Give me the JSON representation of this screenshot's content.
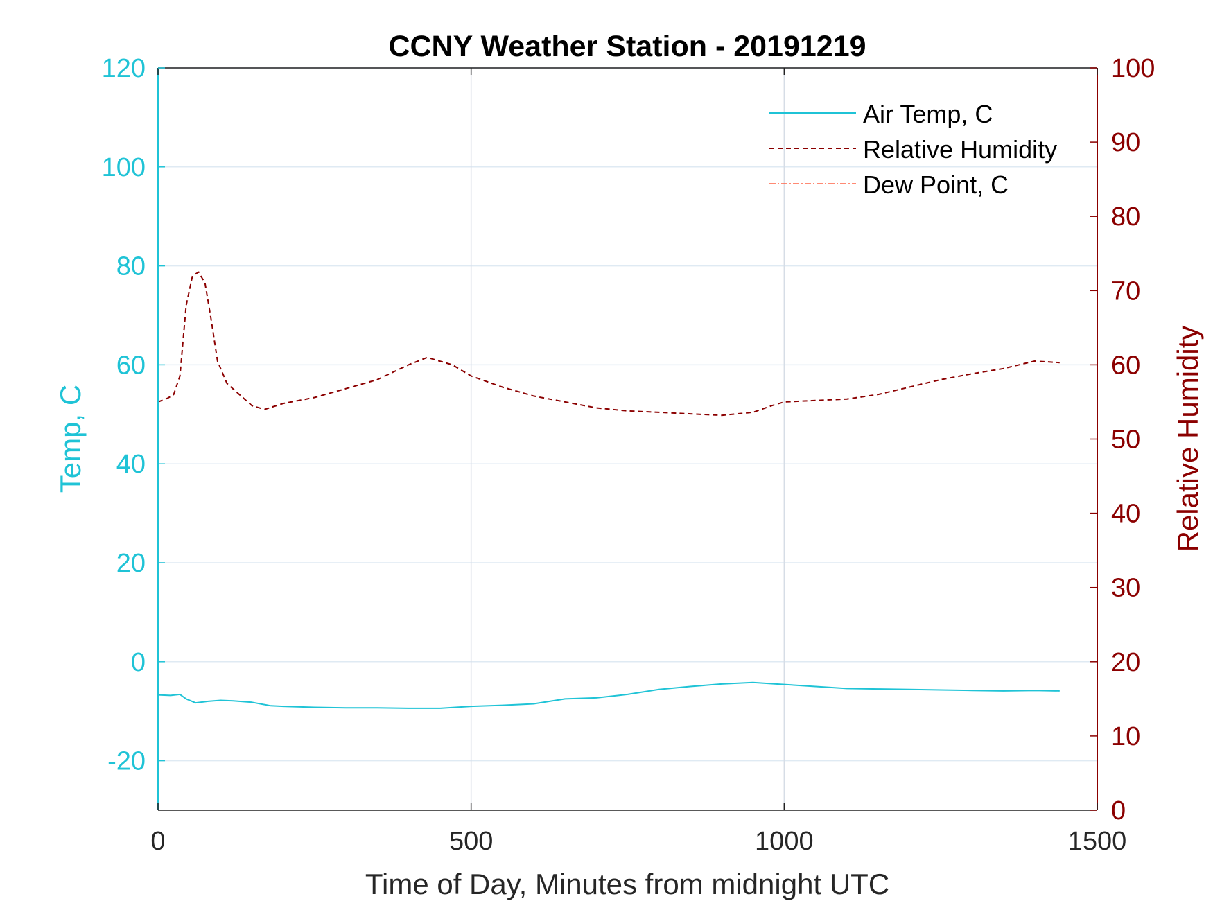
{
  "chart_data": {
    "type": "line",
    "title": "CCNY Weather Station - 20191219",
    "xlabel": "Time of Day, Minutes from midnight UTC",
    "ylabel_left": "Temp, C",
    "ylabel_right": "Relative Humidity",
    "xlim": [
      0,
      1500
    ],
    "ylim_left": [
      -30,
      120
    ],
    "ylim_right": [
      0,
      100
    ],
    "xticks": [
      0,
      500,
      1000,
      1500
    ],
    "yticks_left": [
      -20,
      0,
      20,
      40,
      60,
      80,
      100,
      120
    ],
    "yticks_right": [
      0,
      10,
      20,
      30,
      40,
      50,
      60,
      70,
      80,
      90,
      100
    ],
    "grid": true,
    "legend_position": "top-right",
    "colors": {
      "air_temp": "#1fc3d6",
      "humidity": "#8b0000",
      "dew_point": "#ff6347",
      "grid": "#dfeaf3",
      "vgrid": "#d6dde6",
      "axis": "#222222"
    },
    "series": [
      {
        "name": "Air Temp, C",
        "axis": "left",
        "style": "solid",
        "x": [
          0,
          20,
          35,
          45,
          60,
          80,
          100,
          120,
          150,
          180,
          200,
          250,
          300,
          350,
          400,
          450,
          500,
          550,
          600,
          650,
          700,
          750,
          800,
          850,
          900,
          950,
          1000,
          1050,
          1100,
          1150,
          1200,
          1250,
          1300,
          1350,
          1400,
          1440
        ],
        "values": [
          -6.7,
          -6.8,
          -6.6,
          -7.5,
          -8.3,
          -8.0,
          -7.8,
          -7.9,
          -8.2,
          -8.9,
          -9.0,
          -9.2,
          -9.3,
          -9.3,
          -9.4,
          -9.4,
          -9.0,
          -8.8,
          -8.5,
          -7.5,
          -7.3,
          -6.6,
          -5.6,
          -5.0,
          -4.5,
          -4.2,
          -4.6,
          -5.0,
          -5.4,
          -5.5,
          -5.6,
          -5.7,
          -5.8,
          -5.9,
          -5.8,
          -5.9
        ]
      },
      {
        "name": "Relative Humidity",
        "axis": "right",
        "style": "dashed",
        "x": [
          0,
          15,
          25,
          35,
          45,
          55,
          65,
          75,
          85,
          95,
          110,
          130,
          150,
          170,
          200,
          250,
          300,
          350,
          400,
          430,
          470,
          500,
          550,
          600,
          650,
          700,
          750,
          800,
          850,
          900,
          950,
          980,
          1000,
          1050,
          1100,
          1150,
          1200,
          1250,
          1300,
          1350,
          1400,
          1440
        ],
        "values": [
          55.0,
          55.5,
          56.0,
          58.5,
          68.0,
          72.0,
          72.5,
          71.0,
          66.0,
          60.5,
          57.5,
          56.0,
          54.5,
          54.0,
          54.8,
          55.6,
          56.8,
          58.0,
          60.0,
          61.0,
          60.0,
          58.5,
          57.0,
          55.8,
          55.0,
          54.2,
          53.8,
          53.6,
          53.4,
          53.2,
          53.6,
          54.5,
          55.0,
          55.2,
          55.4,
          56.0,
          57.0,
          58.0,
          58.8,
          59.5,
          60.5,
          60.3
        ]
      },
      {
        "name": "Dew Point, C",
        "axis": "left",
        "style": "dashdot",
        "x": [],
        "values": []
      }
    ]
  }
}
